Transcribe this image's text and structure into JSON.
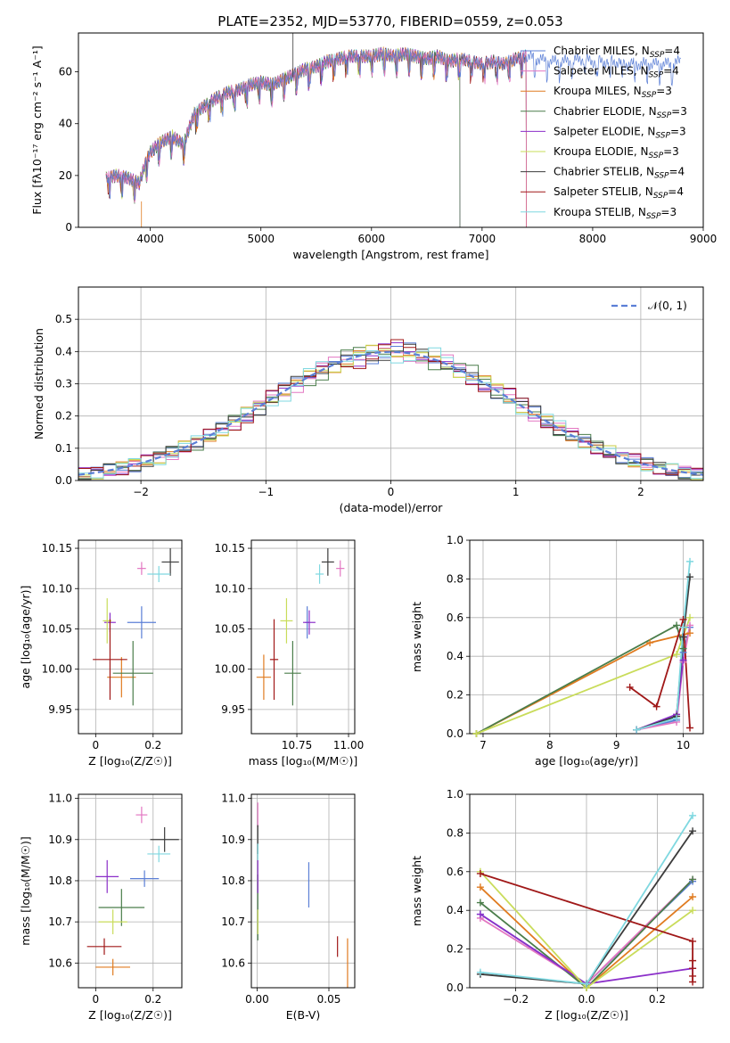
{
  "figure": {
    "title": "PLATE=2352, MJD=53770, FIBERID=0559, z=0.053"
  },
  "colors": {
    "chabrier_miles": "#5b7fd6",
    "salpeter_miles": "#e377c2",
    "kroupa_miles": "#e07b20",
    "chabrier_elodie": "#4a7d4a",
    "salpeter_elodie": "#8b2fc9",
    "kroupa_elodie": "#c9dc5a",
    "chabrier_stelib": "#3c3c3c",
    "salpeter_stelib": "#a01818",
    "kroupa_stelib": "#7fd8e0",
    "normal": "#5b7fd6"
  },
  "chart_data": [
    {
      "id": "spectrum",
      "type": "line",
      "title": "PLATE=2352, MJD=53770, FIBERID=0559, z=0.053",
      "xlabel": "wavelength [Angstrom, rest frame]",
      "ylabel": "Flux [fλ10⁻¹⁷ erg cm⁻² s⁻¹ A⁻¹]",
      "xlim": [
        3350,
        9000
      ],
      "ylim": [
        0,
        75
      ],
      "xticks": [
        4000,
        5000,
        6000,
        7000,
        8000,
        9000
      ],
      "yticks": [
        0,
        20,
        40,
        60
      ],
      "grid": false,
      "legend_position": "right",
      "legend": [
        {
          "label": "Chabrier MILES, N",
          "sub": "SSP",
          "tail": "=4",
          "color": "#5b7fd6"
        },
        {
          "label": "Salpeter MILES, N",
          "sub": "SSP",
          "tail": "=4",
          "color": "#e377c2"
        },
        {
          "label": "Kroupa MILES, N",
          "sub": "SSP",
          "tail": "=3",
          "color": "#e07b20"
        },
        {
          "label": "Chabrier ELODIE, N",
          "sub": "SSP",
          "tail": "=3",
          "color": "#4a7d4a"
        },
        {
          "label": "Salpeter ELODIE, N",
          "sub": "SSP",
          "tail": "=3",
          "color": "#8b2fc9"
        },
        {
          "label": "Kroupa ELODIE, N",
          "sub": "SSP",
          "tail": "=3",
          "color": "#c9dc5a"
        },
        {
          "label": "Chabrier STELIB, N",
          "sub": "SSP",
          "tail": "=4",
          "color": "#3c3c3c"
        },
        {
          "label": "Salpeter STELIB, N",
          "sub": "SSP",
          "tail": "=4",
          "color": "#a01818"
        },
        {
          "label": "Kroupa STELIB, N",
          "sub": "SSP",
          "tail": "=3",
          "color": "#7fd8e0"
        }
      ],
      "envelope": {
        "x": [
          3600,
          3700,
          3800,
          3900,
          3950,
          4000,
          4100,
          4200,
          4300,
          4400,
          4500,
          4600,
          4700,
          4800,
          4900,
          5000,
          5100,
          5200,
          5300,
          5400,
          5500,
          5600,
          5700,
          5800,
          5900,
          6000,
          6100,
          6200,
          6300,
          6400,
          6500,
          6600,
          6700,
          6800,
          6900,
          7000,
          7100,
          7200,
          7300,
          7400,
          7500,
          7600,
          7700,
          7800,
          7900,
          8000,
          8100,
          8200,
          8300,
          8400,
          8500,
          8600,
          8700,
          8800
        ],
        "y": [
          19,
          20,
          19,
          17,
          24,
          29,
          33,
          35,
          32,
          44,
          47,
          50,
          52,
          53,
          55,
          56,
          55,
          57,
          59,
          61,
          62,
          64,
          65,
          66,
          66,
          66,
          67,
          66,
          67,
          66,
          65,
          66,
          64,
          65,
          64,
          63,
          64,
          63,
          65,
          66,
          65,
          64,
          64,
          64,
          65,
          64,
          64,
          64,
          63,
          63,
          63,
          63,
          63,
          64
        ]
      },
      "model_spans": {
        "Chabrier MILES": [
          3600,
          8800
        ],
        "Salpeter MILES": [
          3600,
          7400
        ],
        "Kroupa MILES": [
          3600,
          7400
        ],
        "Chabrier ELODIE": [
          3600,
          6800
        ],
        "Salpeter ELODIE": [
          3600,
          6800
        ],
        "Kroupa ELODIE": [
          3600,
          6800
        ],
        "Chabrier STELIB": [
          3600,
          7400
        ],
        "Salpeter STELIB": [
          3600,
          7400
        ],
        "Kroupa STELIB": [
          3600,
          7400
        ]
      },
      "annotation": "N_SSP"
    },
    {
      "id": "residuals",
      "type": "bar",
      "xlabel": "(data-model)/error",
      "ylabel": "Normed distribution",
      "xlim": [
        -2.5,
        2.5
      ],
      "ylim": [
        0,
        0.6
      ],
      "xticks": [
        -2,
        -1,
        0,
        1,
        2
      ],
      "yticks": [
        0.0,
        0.1,
        0.2,
        0.3,
        0.4,
        0.5
      ],
      "grid": true,
      "legend_position": "top-right",
      "legend": [
        {
          "label": "𝒩(0, 1)",
          "color": "#5b7fd6",
          "dash": true
        }
      ],
      "normal_curve": {
        "mean": 0,
        "sigma": 1
      },
      "bin_width": 0.1,
      "series_jitter": [
        0.04,
        -0.03,
        0.02,
        0.05,
        -0.04,
        -0.02,
        0.03,
        0.06,
        -0.05
      ]
    },
    {
      "id": "age_vs_Z",
      "type": "scatter",
      "xlabel": "Z [log₁₀(Z/Z☉)]",
      "ylabel": "age  [log₁₀(age/yr)]",
      "xlim": [
        -0.06,
        0.3
      ],
      "ylim": [
        9.92,
        10.16
      ],
      "xticks": [
        0.0,
        0.2
      ],
      "yticks": [
        9.95,
        10.0,
        10.05,
        10.1,
        10.15
      ],
      "grid": true,
      "points": [
        {
          "series": "Chabrier MILES",
          "x": 0.16,
          "y": 10.058,
          "xerr": 0.05,
          "yerr": 0.02
        },
        {
          "series": "Salpeter MILES",
          "x": 0.16,
          "y": 10.125,
          "xerr": 0.015,
          "yerr": 0.008
        },
        {
          "series": "Kroupa MILES",
          "x": 0.09,
          "y": 9.99,
          "xerr": 0.05,
          "yerr": 0.025
        },
        {
          "series": "Chabrier ELODIE",
          "x": 0.13,
          "y": 9.995,
          "xerr": 0.07,
          "yerr": 0.04
        },
        {
          "series": "Salpeter ELODIE",
          "x": 0.05,
          "y": 10.058,
          "xerr": 0.02,
          "yerr": 0.012
        },
        {
          "series": "Kroupa ELODIE",
          "x": 0.04,
          "y": 10.06,
          "xerr": 0.015,
          "yerr": 0.028
        },
        {
          "series": "Chabrier STELIB",
          "x": 0.26,
          "y": 10.133,
          "xerr": 0.03,
          "yerr": 0.017
        },
        {
          "series": "Salpeter STELIB",
          "x": 0.05,
          "y": 10.012,
          "xerr": 0.06,
          "yerr": 0.05
        },
        {
          "series": "Kroupa STELIB",
          "x": 0.22,
          "y": 10.118,
          "xerr": 0.04,
          "yerr": 0.01
        }
      ]
    },
    {
      "id": "age_vs_mass",
      "type": "scatter",
      "xlabel": "mass [log₁₀(M/M☉)]",
      "ylabel": "",
      "xlim": [
        10.53,
        11.03
      ],
      "ylim": [
        9.92,
        10.16
      ],
      "xticks": [
        10.75,
        11.0
      ],
      "tick_labels": [
        "10.75",
        "11.00"
      ],
      "yticks": [
        9.95,
        10.0,
        10.05,
        10.1,
        10.15
      ],
      "grid": true,
      "points": [
        {
          "series": "Chabrier MILES",
          "x": 10.8,
          "y": 10.058,
          "xerr": 0.01,
          "yerr": 0.02
        },
        {
          "series": "Salpeter MILES",
          "x": 10.96,
          "y": 10.125,
          "xerr": 0.02,
          "yerr": 0.01
        },
        {
          "series": "Kroupa MILES",
          "x": 10.59,
          "y": 9.99,
          "xerr": 0.035,
          "yerr": 0.028
        },
        {
          "series": "Chabrier ELODIE",
          "x": 10.73,
          "y": 9.995,
          "xerr": 0.04,
          "yerr": 0.04
        },
        {
          "series": "Salpeter ELODIE",
          "x": 10.81,
          "y": 10.058,
          "xerr": 0.03,
          "yerr": 0.015
        },
        {
          "series": "Kroupa ELODIE",
          "x": 10.7,
          "y": 10.06,
          "xerr": 0.03,
          "yerr": 0.028
        },
        {
          "series": "Chabrier STELIB",
          "x": 10.9,
          "y": 10.133,
          "xerr": 0.03,
          "yerr": 0.017
        },
        {
          "series": "Salpeter STELIB",
          "x": 10.64,
          "y": 10.012,
          "xerr": 0.02,
          "yerr": 0.05
        },
        {
          "series": "Kroupa STELIB",
          "x": 10.86,
          "y": 10.118,
          "xerr": 0.02,
          "yerr": 0.012
        }
      ]
    },
    {
      "id": "weight_vs_age",
      "type": "line",
      "xlabel": "age  [log₁₀(age/yr)]",
      "ylabel": "mass weight",
      "xlim": [
        6.8,
        10.3
      ],
      "ylim": [
        0.0,
        1.0
      ],
      "xticks": [
        7,
        8,
        9,
        10
      ],
      "yticks": [
        0.0,
        0.2,
        0.4,
        0.6,
        0.8,
        1.0
      ],
      "grid": true,
      "series": [
        {
          "name": "Chabrier MILES",
          "x": [
            9.3,
            9.9,
            10.0,
            10.1
          ],
          "y": [
            0.02,
            0.07,
            0.42,
            0.55
          ]
        },
        {
          "name": "Salpeter MILES",
          "x": [
            9.3,
            9.9,
            10.0,
            10.1
          ],
          "y": [
            0.02,
            0.06,
            0.37,
            0.56
          ]
        },
        {
          "name": "Kroupa MILES",
          "x": [
            6.9,
            9.5,
            10.1
          ],
          "y": [
            0.0,
            0.47,
            0.52
          ]
        },
        {
          "name": "Chabrier ELODIE",
          "x": [
            6.9,
            9.9,
            10.0
          ],
          "y": [
            0.0,
            0.56,
            0.44
          ]
        },
        {
          "name": "Salpeter ELODIE",
          "x": [
            9.3,
            9.9,
            10.0
          ],
          "y": [
            0.02,
            0.1,
            0.38
          ]
        },
        {
          "name": "Kroupa ELODIE",
          "x": [
            6.9,
            9.9,
            10.1
          ],
          "y": [
            0.0,
            0.41,
            0.6
          ]
        },
        {
          "name": "Chabrier STELIB",
          "x": [
            9.3,
            9.9,
            10.0,
            10.1
          ],
          "y": [
            0.02,
            0.09,
            0.5,
            0.81
          ]
        },
        {
          "name": "Salpeter STELIB",
          "x": [
            9.2,
            9.6,
            10.0,
            10.1
          ],
          "y": [
            0.24,
            0.14,
            0.59,
            0.03
          ]
        },
        {
          "name": "Kroupa STELIB",
          "x": [
            9.3,
            9.9,
            10.0,
            10.1
          ],
          "y": [
            0.02,
            0.08,
            0.55,
            0.89
          ]
        }
      ]
    },
    {
      "id": "mass_vs_Z",
      "type": "scatter",
      "xlabel": "Z [log₁₀(Z/Z☉)]",
      "ylabel": "mass [log₁₀(M/M☉)]",
      "xlim": [
        -0.06,
        0.3
      ],
      "ylim": [
        10.54,
        11.01
      ],
      "xticks": [
        0.0,
        0.2
      ],
      "yticks": [
        10.6,
        10.7,
        10.8,
        10.9,
        11.0
      ],
      "grid": true,
      "points": [
        {
          "series": "Chabrier MILES",
          "x": 0.17,
          "y": 10.805,
          "xerr": 0.05,
          "yerr": 0.02
        },
        {
          "series": "Salpeter MILES",
          "x": 0.16,
          "y": 10.96,
          "xerr": 0.02,
          "yerr": 0.02
        },
        {
          "series": "Kroupa MILES",
          "x": 0.06,
          "y": 10.59,
          "xerr": 0.06,
          "yerr": 0.02
        },
        {
          "series": "Chabrier ELODIE",
          "x": 0.09,
          "y": 10.735,
          "xerr": 0.08,
          "yerr": 0.045
        },
        {
          "series": "Salpeter ELODIE",
          "x": 0.04,
          "y": 10.81,
          "xerr": 0.04,
          "yerr": 0.04
        },
        {
          "series": "Kroupa ELODIE",
          "x": 0.06,
          "y": 10.7,
          "xerr": 0.05,
          "yerr": 0.03
        },
        {
          "series": "Chabrier STELIB",
          "x": 0.24,
          "y": 10.9,
          "xerr": 0.05,
          "yerr": 0.03
        },
        {
          "series": "Salpeter STELIB",
          "x": 0.03,
          "y": 10.64,
          "xerr": 0.06,
          "yerr": 0.02
        },
        {
          "series": "Kroupa STELIB",
          "x": 0.22,
          "y": 10.865,
          "xerr": 0.04,
          "yerr": 0.02
        }
      ]
    },
    {
      "id": "mass_vs_ebv",
      "type": "scatter",
      "xlabel": "E(B-V)",
      "ylabel": "",
      "xlim": [
        -0.004,
        0.068
      ],
      "ylim": [
        10.54,
        11.01
      ],
      "xticks": [
        0.0,
        0.05
      ],
      "tick_labels": [
        "0.00",
        "0.05"
      ],
      "yticks": [
        10.6,
        10.7,
        10.8,
        10.9,
        11.0
      ],
      "grid": true,
      "points": [
        {
          "series": "Chabrier MILES",
          "x": 0.036,
          "y": 10.79,
          "xerr": 0.0,
          "yerr": 0.055
        },
        {
          "series": "Salpeter MILES",
          "x": 0.0005,
          "y": 10.96,
          "xerr": 0.0,
          "yerr": 0.03
        },
        {
          "series": "Kroupa MILES",
          "x": 0.063,
          "y": 10.59,
          "xerr": 0.0,
          "yerr": 0.07
        },
        {
          "series": "Chabrier ELODIE",
          "x": 0.0005,
          "y": 10.735,
          "xerr": 0.0,
          "yerr": 0.08
        },
        {
          "series": "Salpeter ELODIE",
          "x": 0.0005,
          "y": 10.81,
          "xerr": 0.0,
          "yerr": 0.04
        },
        {
          "series": "Kroupa ELODIE",
          "x": 0.0005,
          "y": 10.7,
          "xerr": 0.0,
          "yerr": 0.03
        },
        {
          "series": "Chabrier STELIB",
          "x": 0.0005,
          "y": 10.9,
          "xerr": 0.0,
          "yerr": 0.035
        },
        {
          "series": "Salpeter STELIB",
          "x": 0.056,
          "y": 10.64,
          "xerr": 0.0,
          "yerr": 0.025
        },
        {
          "series": "Kroupa STELIB",
          "x": 0.0005,
          "y": 10.87,
          "xerr": 0.0,
          "yerr": 0.02
        }
      ]
    },
    {
      "id": "weight_vs_Z",
      "type": "line",
      "xlabel": "Z [log₁₀(Z/Z☉)]",
      "ylabel": "mass weight",
      "xlim": [
        -0.33,
        0.33
      ],
      "ylim": [
        0.0,
        1.0
      ],
      "xticks": [
        -0.2,
        0.0,
        0.2
      ],
      "tick_labels": [
        "−0.2",
        "0.0",
        "0.2"
      ],
      "yticks": [
        0.0,
        0.2,
        0.4,
        0.6,
        0.8,
        1.0
      ],
      "grid": true,
      "series": [
        {
          "name": "Chabrier MILES",
          "x": [
            -0.3,
            0.0,
            0.3
          ],
          "y": [
            0.38,
            0.02,
            0.55
          ]
        },
        {
          "name": "Salpeter MILES",
          "x": [
            -0.3,
            0.0,
            0.3
          ],
          "y": [
            0.36,
            0.02,
            0.56
          ]
        },
        {
          "name": "Kroupa MILES",
          "x": [
            -0.3,
            0.0,
            0.3
          ],
          "y": [
            0.52,
            0.0,
            0.47
          ]
        },
        {
          "name": "Chabrier ELODIE",
          "x": [
            -0.3,
            0.0,
            0.3
          ],
          "y": [
            0.44,
            0.0,
            0.56
          ]
        },
        {
          "name": "Salpeter ELODIE",
          "x": [
            -0.3,
            0.0,
            0.3
          ],
          "y": [
            0.38,
            0.02,
            0.1
          ]
        },
        {
          "name": "Kroupa ELODIE",
          "x": [
            -0.3,
            0.0,
            0.3
          ],
          "y": [
            0.6,
            0.0,
            0.4
          ]
        },
        {
          "name": "Chabrier STELIB",
          "x": [
            -0.3,
            0.0,
            0.3
          ],
          "y": [
            0.07,
            0.02,
            0.81
          ]
        },
        {
          "name": "Salpeter STELIB",
          "x": [
            -0.3,
            0.3,
            0.3,
            0.3,
            0.3,
            0.3
          ],
          "y": [
            0.59,
            0.24,
            0.14,
            0.1,
            0.06,
            0.03
          ]
        },
        {
          "name": "Kroupa STELIB",
          "x": [
            -0.3,
            0.0,
            0.3
          ],
          "y": [
            0.08,
            0.02,
            0.89
          ]
        }
      ]
    }
  ]
}
